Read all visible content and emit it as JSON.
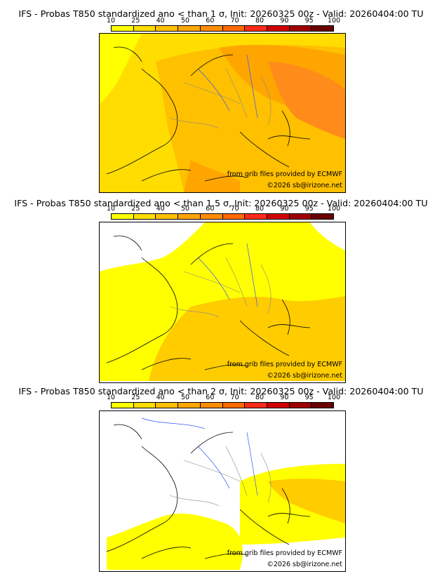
{
  "panels": [
    {
      "title": "IFS - Probas T850  standardized ano < than 1 σ, Init: 20260325 00z - Valid: 20260404:00 TU",
      "threshold_sigma": 1
    },
    {
      "title": "IFS - Probas T850  standardized ano < than 1.5 σ, Init: 20260325 00z - Valid: 20260404:00 TU",
      "threshold_sigma": 1.5
    },
    {
      "title": "IFS - Probas T850  standardized ano < than 2 σ, Init: 20260325 00z - Valid: 20260404:00 TU",
      "threshold_sigma": 2
    }
  ],
  "colorbar": {
    "ticks": [
      "10",
      "25",
      "40",
      "50",
      "60",
      "70",
      "80",
      "90",
      "95",
      "100"
    ],
    "colors": [
      "#ffff00",
      "#ffdd00",
      "#ffc000",
      "#ffa500",
      "#ff8c00",
      "#ff6a00",
      "#ff2a1a",
      "#d00000",
      "#a00000",
      "#6a0000"
    ]
  },
  "credits": {
    "source": "from grib files provided by ECMWF",
    "copyright": "©2026 sb@irizone.net"
  },
  "colors": {
    "light_yellow": "#ffff00",
    "yellow_orange": "#ffcc00",
    "orange": "#ffa500",
    "dark_orange": "#ff8c1a",
    "coast_line": "#000000",
    "rivers": "#3355ff",
    "borders": "#888888"
  }
}
